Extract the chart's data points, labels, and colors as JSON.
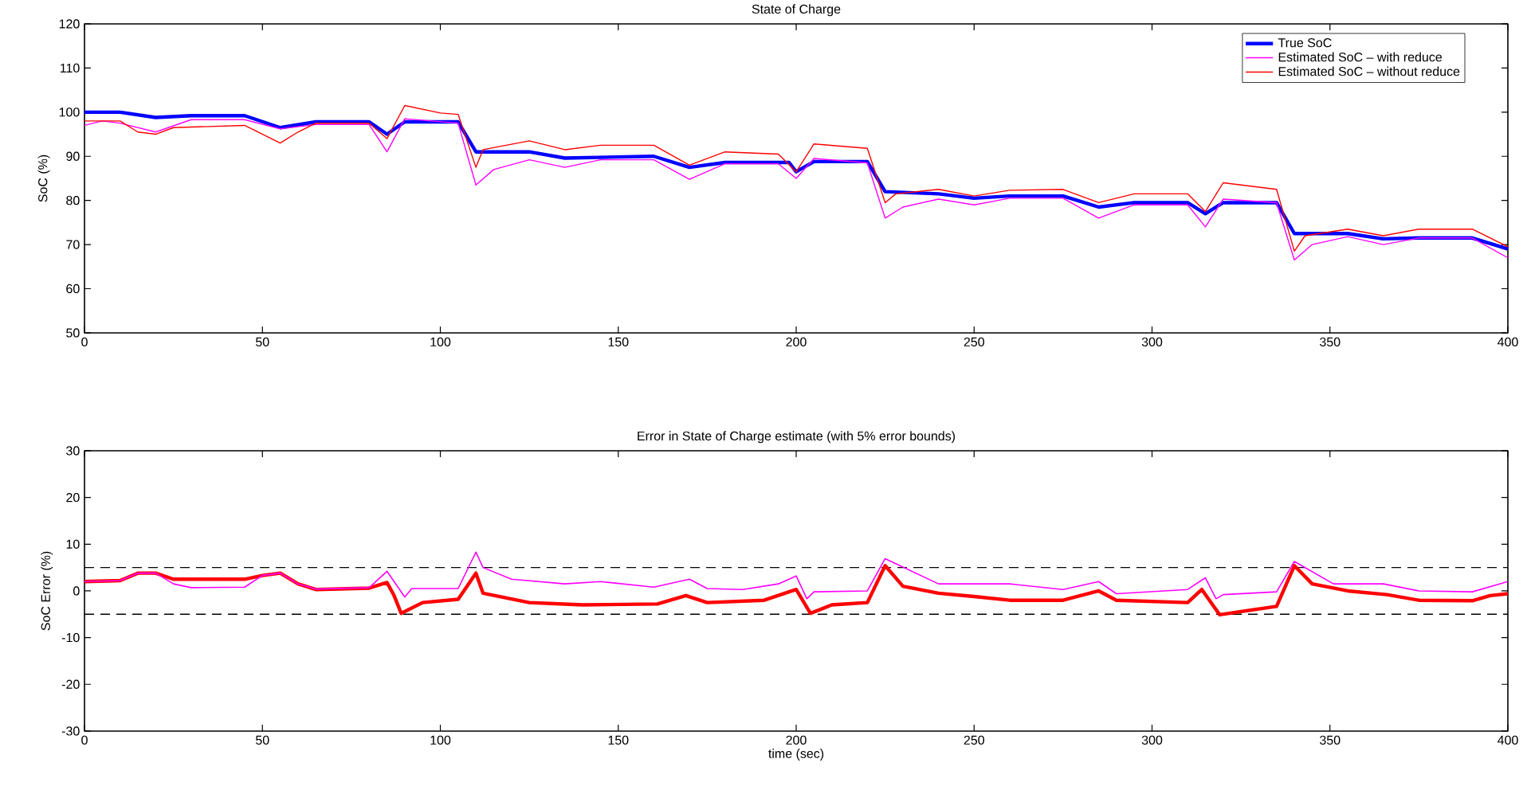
{
  "chart_data": [
    {
      "type": "line",
      "title": "State of Charge",
      "ylabel": "SoC (%)",
      "xlim": [
        0,
        400
      ],
      "xticks": [
        0,
        50,
        100,
        150,
        200,
        250,
        300,
        350,
        400
      ],
      "ylim": [
        50,
        120
      ],
      "yticks": [
        50,
        60,
        70,
        80,
        90,
        100,
        110,
        120
      ],
      "legend": "top right",
      "series": [
        {
          "name": "True SoC",
          "color": "#0000ff",
          "x": [
            0,
            10,
            20,
            30,
            45,
            55,
            65,
            80,
            85,
            90,
            105,
            110,
            125,
            135,
            160,
            170,
            180,
            198,
            200,
            205,
            220,
            225,
            240,
            250,
            260,
            275,
            285,
            295,
            310,
            315,
            320,
            335,
            340,
            355,
            365,
            375,
            390,
            400
          ],
          "values": [
            100,
            100,
            98.8,
            99.2,
            99.2,
            96.5,
            97.8,
            97.8,
            95,
            97.8,
            97.8,
            91,
            91,
            89.6,
            90,
            87.5,
            88.6,
            88.6,
            86.5,
            88.8,
            88.8,
            82,
            81.5,
            80.5,
            81,
            81,
            78.5,
            79.5,
            79.5,
            77,
            79.5,
            79.5,
            72.5,
            72.5,
            71.3,
            71.5,
            71.5,
            69
          ]
        },
        {
          "name": "Estimated SoC – with reduce",
          "color": "#ff00ff",
          "x": [
            0,
            5,
            10,
            20,
            30,
            45,
            55,
            65,
            80,
            85,
            90,
            105,
            110,
            115,
            125,
            135,
            145,
            160,
            170,
            180,
            195,
            200,
            205,
            220,
            225,
            230,
            240,
            250,
            260,
            275,
            285,
            295,
            310,
            315,
            320,
            335,
            340,
            345,
            355,
            365,
            375,
            390,
            400
          ],
          "values": [
            97,
            98,
            97.5,
            95.5,
            98.3,
            98.3,
            96.2,
            97.2,
            97.2,
            91,
            98.5,
            97.5,
            83.5,
            87,
            89.2,
            87.5,
            89.2,
            89.2,
            84.8,
            88.3,
            88.3,
            85,
            89.5,
            88.5,
            76,
            78.5,
            80.3,
            79,
            80.5,
            80.5,
            76,
            79,
            79,
            74,
            80.3,
            79.5,
            66.5,
            70,
            71.8,
            70,
            71.5,
            71.5,
            67
          ]
        },
        {
          "name": "Estimated SoC – without reduce",
          "color": "#ff0000",
          "x": [
            0,
            10,
            15,
            20,
            25,
            45,
            55,
            60,
            65,
            80,
            85,
            90,
            100,
            105,
            110,
            112,
            125,
            135,
            145,
            160,
            170,
            180,
            195,
            200,
            205,
            220,
            225,
            228,
            240,
            250,
            260,
            275,
            285,
            295,
            310,
            315,
            320,
            335,
            340,
            343,
            355,
            365,
            375,
            390,
            400
          ],
          "values": [
            98,
            98,
            95.5,
            95,
            96.5,
            97,
            93,
            95.5,
            97.5,
            97.5,
            94,
            101.5,
            99.8,
            99.5,
            87.5,
            91.5,
            93.5,
            91.5,
            92.5,
            92.5,
            88,
            91,
            90.5,
            86.5,
            92.8,
            91.8,
            79.5,
            81.5,
            82.5,
            81,
            82.3,
            82.5,
            79.5,
            81.5,
            81.5,
            77.5,
            84,
            82.5,
            68.5,
            72,
            73.5,
            72,
            73.5,
            73.5,
            69.5
          ]
        }
      ]
    },
    {
      "type": "line",
      "title": "Error in State of Charge estimate (with 5% error bounds)",
      "xlabel": "time (sec)",
      "ylabel": "SoC Error (%)",
      "xlim": [
        0,
        400
      ],
      "xticks": [
        0,
        50,
        100,
        150,
        200,
        250,
        300,
        350,
        400
      ],
      "ylim": [
        -30,
        30
      ],
      "yticks": [
        -30,
        -20,
        -10,
        0,
        10,
        20,
        30
      ],
      "ref_lines": [
        {
          "axis": "y",
          "value": 5,
          "color": "#000000",
          "line_style": "dashed"
        },
        {
          "axis": "y",
          "value": -5,
          "color": "#000000",
          "line_style": "dashed"
        }
      ],
      "series": [
        {
          "color": "#ff00ff",
          "x": [
            0,
            10,
            15,
            20,
            25,
            30,
            45,
            50,
            55,
            60,
            65,
            80,
            85,
            87,
            90,
            92,
            105,
            110,
            112,
            120,
            135,
            145,
            160,
            170,
            175,
            185,
            195,
            200,
            203,
            205,
            220,
            225,
            240,
            260,
            275,
            285,
            290,
            310,
            315,
            318,
            320,
            335,
            340,
            351,
            365,
            375,
            390,
            395,
            400
          ],
          "values": [
            2,
            2.2,
            3.8,
            3.8,
            1.5,
            0.7,
            0.8,
            3.3,
            3.8,
            1.5,
            0.4,
            0.7,
            4.2,
            2,
            -1.3,
            0.5,
            0.5,
            8.3,
            5,
            2.5,
            1.5,
            2,
            0.8,
            2.5,
            0.5,
            0.3,
            1.5,
            3.2,
            -1.7,
            -0.2,
            0,
            6.9,
            1.5,
            1.5,
            0.3,
            2,
            -0.6,
            0.3,
            2.8,
            -1.7,
            -0.8,
            -0.2,
            6.3,
            1.5,
            1.5,
            0,
            -0.2,
            0.9,
            2
          ]
        },
        {
          "color": "#ff0000",
          "x": [
            0,
            10,
            15,
            20,
            25,
            45,
            50,
            55,
            60,
            65,
            80,
            85,
            87,
            89,
            95,
            105,
            110,
            112,
            125,
            140,
            161,
            169,
            175,
            191,
            200,
            204,
            210,
            220,
            225,
            230,
            240,
            250,
            260,
            275,
            285,
            290,
            310,
            314,
            319,
            335,
            340,
            345,
            355,
            366,
            375,
            390,
            395,
            400
          ],
          "values": [
            2,
            2.2,
            3.8,
            3.8,
            2.5,
            2.5,
            3.3,
            3.8,
            1.5,
            0.3,
            0.6,
            1.8,
            -1,
            -4.8,
            -2.5,
            -1.8,
            3.8,
            -0.5,
            -2.5,
            -3,
            -2.8,
            -1,
            -2.5,
            -2,
            0.3,
            -4.8,
            -3,
            -2.5,
            5.4,
            1,
            -0.5,
            -1.2,
            -2,
            -2,
            0,
            -2,
            -2.5,
            0.3,
            -5.1,
            -3.3,
            5.4,
            1.5,
            0,
            -0.8,
            -2,
            -2.1,
            -1,
            -0.6
          ]
        }
      ]
    }
  ]
}
